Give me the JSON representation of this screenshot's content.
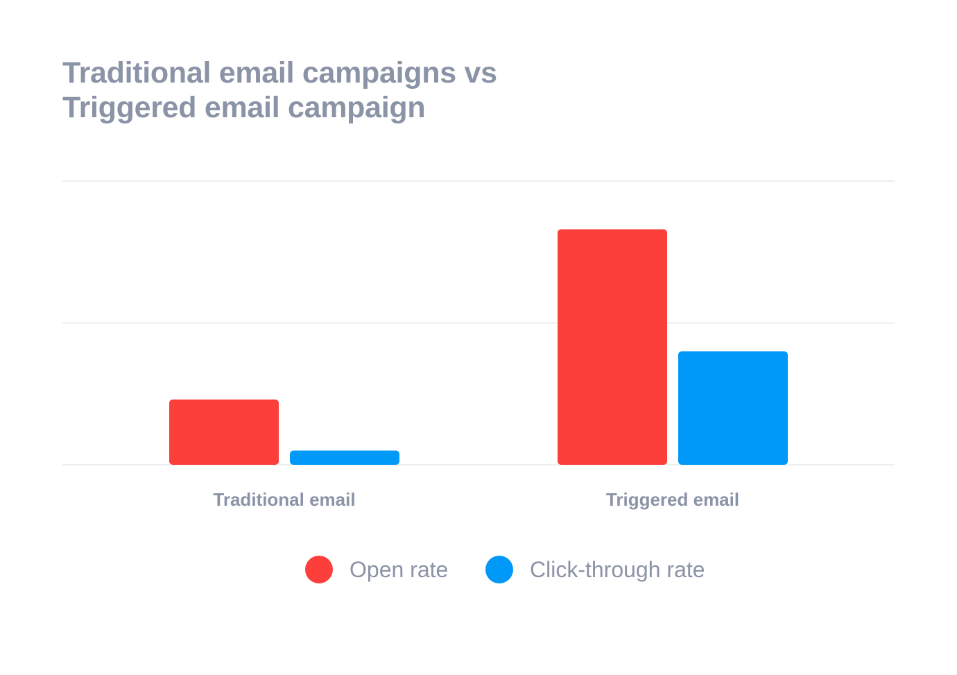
{
  "title_lines": [
    "Traditional email campaigns vs",
    "Triggered email campaign"
  ],
  "chart_data": {
    "type": "bar",
    "title": "Traditional email campaigns vs Triggered email campaign",
    "categories": [
      "Traditional email",
      "Triggered email"
    ],
    "series": [
      {
        "name": "Open rate",
        "color": "#fc3f3b",
        "values": [
          2.3,
          8.3
        ]
      },
      {
        "name": "Click-through rate",
        "color": "#0099f7",
        "values": [
          0.5,
          4.0
        ]
      }
    ],
    "xlabel": "",
    "ylabel": "",
    "ylim": [
      0,
      10
    ],
    "grid": true,
    "y_ticks_labeled": false,
    "legend_position": "bottom"
  }
}
